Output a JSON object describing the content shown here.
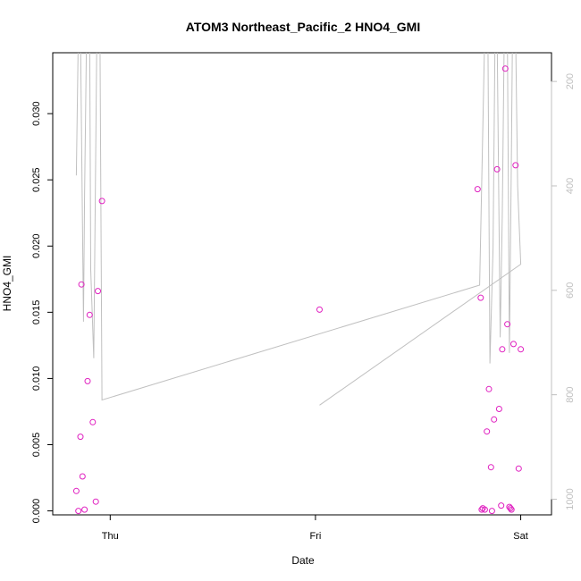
{
  "chart_data": {
    "type": "scatter",
    "title": "ATOM3 Northeast_Pacific_2 HNO4_GMI",
    "xlabel": "Date",
    "ylabel": "HNO4_GMI",
    "x_ticks": [
      {
        "label": "Thu",
        "value": 1.0
      },
      {
        "label": "Fri",
        "value": 2.0
      },
      {
        "label": "Sat",
        "value": 3.0
      }
    ],
    "xlim": [
      0.72,
      3.15
    ],
    "ylim": [
      -0.0003,
      0.0346
    ],
    "y_ticks": [
      "0.000",
      "0.005",
      "0.010",
      "0.015",
      "0.020",
      "0.025",
      "0.030"
    ],
    "y2_ticks": [
      "200",
      "400",
      "600",
      "800",
      "1000"
    ],
    "y2lim": [
      1030,
      145
    ],
    "y2_reversed": true,
    "colors": {
      "points": "#e020c0",
      "line": "#c0c0c0",
      "axis": "#000000",
      "right_axis": "#c0c0c0"
    },
    "series": [
      {
        "type": "scatter",
        "points": [
          [
            0.835,
            0.0015
          ],
          [
            0.845,
            0.0
          ],
          [
            0.855,
            0.0056
          ],
          [
            0.86,
            0.0171
          ],
          [
            0.865,
            0.0026
          ],
          [
            0.875,
            0.0001
          ],
          [
            0.89,
            0.0098
          ],
          [
            0.9,
            0.0148
          ],
          [
            0.915,
            0.0067
          ],
          [
            0.93,
            0.0007
          ],
          [
            0.94,
            0.0166
          ],
          [
            0.96,
            0.0234
          ],
          [
            2.02,
            0.0152
          ],
          [
            2.79,
            0.0243
          ],
          [
            2.805,
            0.0161
          ],
          [
            2.81,
            0.0001
          ],
          [
            2.815,
            0.0002
          ],
          [
            2.825,
            0.0001
          ],
          [
            2.835,
            0.006
          ],
          [
            2.845,
            0.0092
          ],
          [
            2.855,
            0.0033
          ],
          [
            2.86,
            0.0
          ],
          [
            2.87,
            0.0069
          ],
          [
            2.885,
            0.0258
          ],
          [
            2.895,
            0.0077
          ],
          [
            2.905,
            0.0004
          ],
          [
            2.91,
            0.0122
          ],
          [
            2.925,
            0.0334
          ],
          [
            2.935,
            0.0141
          ],
          [
            2.945,
            0.0003
          ],
          [
            2.95,
            0.0002
          ],
          [
            2.955,
            0.0001
          ],
          [
            2.965,
            0.0126
          ],
          [
            2.975,
            0.0261
          ],
          [
            2.99,
            0.0032
          ],
          [
            3.0,
            0.0122
          ]
        ]
      },
      {
        "type": "line",
        "axis": "right",
        "points": [
          [
            0.835,
            380
          ],
          [
            0.845,
            100
          ],
          [
            0.855,
            100
          ],
          [
            0.87,
            660
          ],
          [
            0.875,
            420
          ],
          [
            0.885,
            100
          ],
          [
            0.9,
            100
          ],
          [
            0.905,
            560
          ],
          [
            0.92,
            730
          ],
          [
            0.935,
            100
          ],
          [
            0.95,
            100
          ],
          [
            0.96,
            810
          ],
          [
            2.8,
            590
          ],
          [
            2.825,
            100
          ],
          [
            2.84,
            100
          ],
          [
            2.85,
            740
          ],
          [
            2.865,
            520
          ],
          [
            2.875,
            100
          ],
          [
            2.885,
            100
          ],
          [
            2.9,
            690
          ],
          [
            2.91,
            460
          ],
          [
            2.92,
            100
          ],
          [
            2.935,
            100
          ],
          [
            2.945,
            720
          ],
          [
            2.955,
            330
          ],
          [
            2.96,
            100
          ],
          [
            2.975,
            100
          ],
          [
            2.985,
            400
          ],
          [
            3.0,
            550
          ],
          [
            2.02,
            820
          ]
        ]
      }
    ]
  }
}
